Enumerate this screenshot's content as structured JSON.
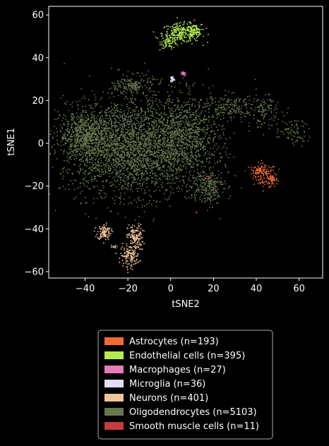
{
  "chart_data": {
    "type": "scatter",
    "xlabel": "tSNE2",
    "ylabel": "tSNE1",
    "xlim": [
      -57,
      71
    ],
    "ylim": [
      -63,
      64
    ],
    "xticks": [
      -40,
      -20,
      0,
      20,
      40,
      60
    ],
    "yticks": [
      -60,
      -40,
      -20,
      0,
      20,
      40,
      60
    ],
    "xtick_labels": [
      "−40",
      "−20",
      "0",
      "20",
      "40",
      "60"
    ],
    "ytick_labels": [
      "−60",
      "−40",
      "−20",
      "0",
      "20",
      "40",
      "60"
    ],
    "grid": false,
    "legend_position": "below",
    "series": [
      {
        "name": "Astrocytes (n=193)",
        "color": "#f26b35",
        "clusters": [
          {
            "x": 44,
            "y": -15,
            "sx": 2.6,
            "sy": 2.8,
            "n": 110
          },
          {
            "x": 40,
            "y": -12.5,
            "sx": 1.6,
            "sy": 1.2,
            "n": 40
          },
          {
            "x": 47.5,
            "y": -17,
            "sx": 1.2,
            "sy": 1.5,
            "n": 43
          }
        ]
      },
      {
        "name": "Endothelial cells (n=395)",
        "color": "#b5eb4d",
        "clusters": [
          {
            "x": 5,
            "y": 51.5,
            "sx": 4.5,
            "sy": 2.2,
            "n": 250
          },
          {
            "x": -0.5,
            "y": 47.5,
            "sx": 2.0,
            "sy": 1.5,
            "n": 70
          },
          {
            "x": 11,
            "y": 52.5,
            "sx": 1.8,
            "sy": 1.5,
            "n": 75
          }
        ]
      },
      {
        "name": "Macrophages (n=27)",
        "color": "#e67cb7",
        "clusters": [
          {
            "x": 6,
            "y": 32.5,
            "sx": 0.5,
            "sy": 0.6,
            "n": 27
          }
        ]
      },
      {
        "name": "Microglia (n=36)",
        "color": "#e0def5",
        "clusters": [
          {
            "x": 0.8,
            "y": 30,
            "sx": 0.5,
            "sy": 0.8,
            "n": 36
          }
        ]
      },
      {
        "name": "Neurons (n=401)",
        "color": "#f2c49a",
        "clusters": [
          {
            "x": -31,
            "y": -41.5,
            "sx": 1.6,
            "sy": 1.8,
            "n": 110
          },
          {
            "x": -27,
            "y": -48.5,
            "sx": 0.8,
            "sy": 0.4,
            "n": 10
          },
          {
            "x": -16.5,
            "y": -44,
            "sx": 1.8,
            "sy": 3.0,
            "n": 140
          },
          {
            "x": -19,
            "y": -52.5,
            "sx": 2.2,
            "sy": 2.5,
            "n": 141
          }
        ]
      },
      {
        "name": "Oligodendrocytes (n=5103)",
        "color": "#66784d",
        "clusters": [
          {
            "x": -18,
            "y": -2,
            "sx": 16,
            "sy": 11,
            "n": 3000
          },
          {
            "x": -40,
            "y": 4,
            "sx": 6,
            "sy": 5,
            "n": 600
          },
          {
            "x": 8,
            "y": 5,
            "sx": 8,
            "sy": 9,
            "n": 700
          },
          {
            "x": 17,
            "y": -20,
            "sx": 4,
            "sy": 4,
            "n": 250
          },
          {
            "x": -17,
            "y": 27,
            "sx": 4.5,
            "sy": 2.5,
            "n": 180
          },
          {
            "x": 28,
            "y": 17,
            "sx": 6,
            "sy": 3,
            "n": 180
          },
          {
            "x": 44,
            "y": 15,
            "sx": 4,
            "sy": 4,
            "n": 110
          },
          {
            "x": 57,
            "y": 5,
            "sx": 4,
            "sy": 3,
            "n": 83
          }
        ]
      },
      {
        "name": "Smooth muscle cells (n=11)",
        "color": "#c73a3e",
        "clusters": [
          {
            "x": 11,
            "y": 57.5,
            "sx": 0.2,
            "sy": 0.3,
            "n": 3
          },
          {
            "x": 12,
            "y": -32,
            "sx": 0.3,
            "sy": 0.3,
            "n": 3
          },
          {
            "x": 17,
            "y": -16,
            "sx": 0.4,
            "sy": 0.5,
            "n": 5
          }
        ]
      }
    ]
  }
}
